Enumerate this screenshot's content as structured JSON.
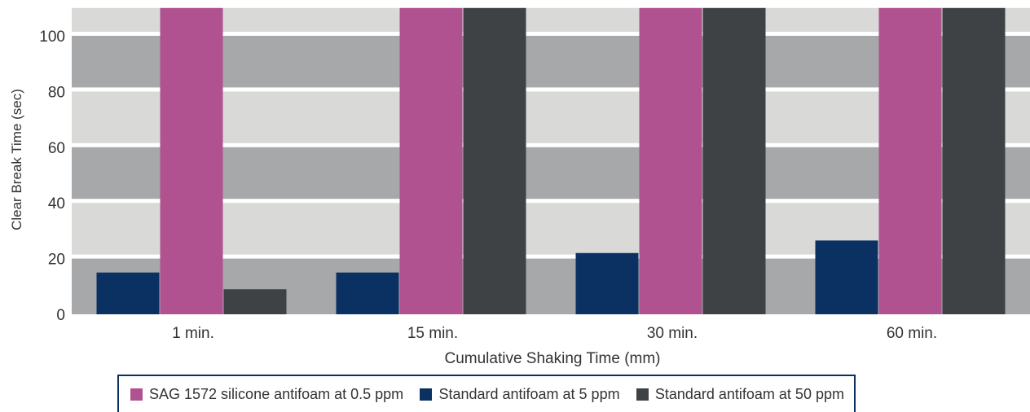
{
  "chart_data": {
    "type": "bar",
    "title": "",
    "xlabel": "Cumulative Shaking Time (mm)",
    "ylabel": "Clear Break Time (sec)",
    "categories": [
      "1 min.",
      "15 min.",
      "30 min.",
      "60 min."
    ],
    "yticks": [
      "0",
      "20",
      "40",
      "60",
      "80",
      "100"
    ],
    "ylim": [
      0,
      110
    ],
    "grid": "alternating horizontal bands",
    "legend_position": "bottom",
    "series": [
      {
        "name": "Standard antifoam at 5 ppm",
        "color": "#0b3163",
        "values": [
          15,
          15,
          22,
          26.5
        ]
      },
      {
        "name": "SAG 1572 silicone antifoam at 0.5 ppm",
        "color": "#b0528f",
        "values": [
          110,
          110,
          110,
          110
        ]
      },
      {
        "name": "Standard antifoam at 50 ppm",
        "color": "#3f4244",
        "values": [
          9,
          110,
          110,
          110
        ]
      }
    ],
    "legend_order": [
      1,
      0,
      2
    ],
    "band_colors": {
      "light": "#d9dad8",
      "dark": "#a6a8a9"
    }
  }
}
